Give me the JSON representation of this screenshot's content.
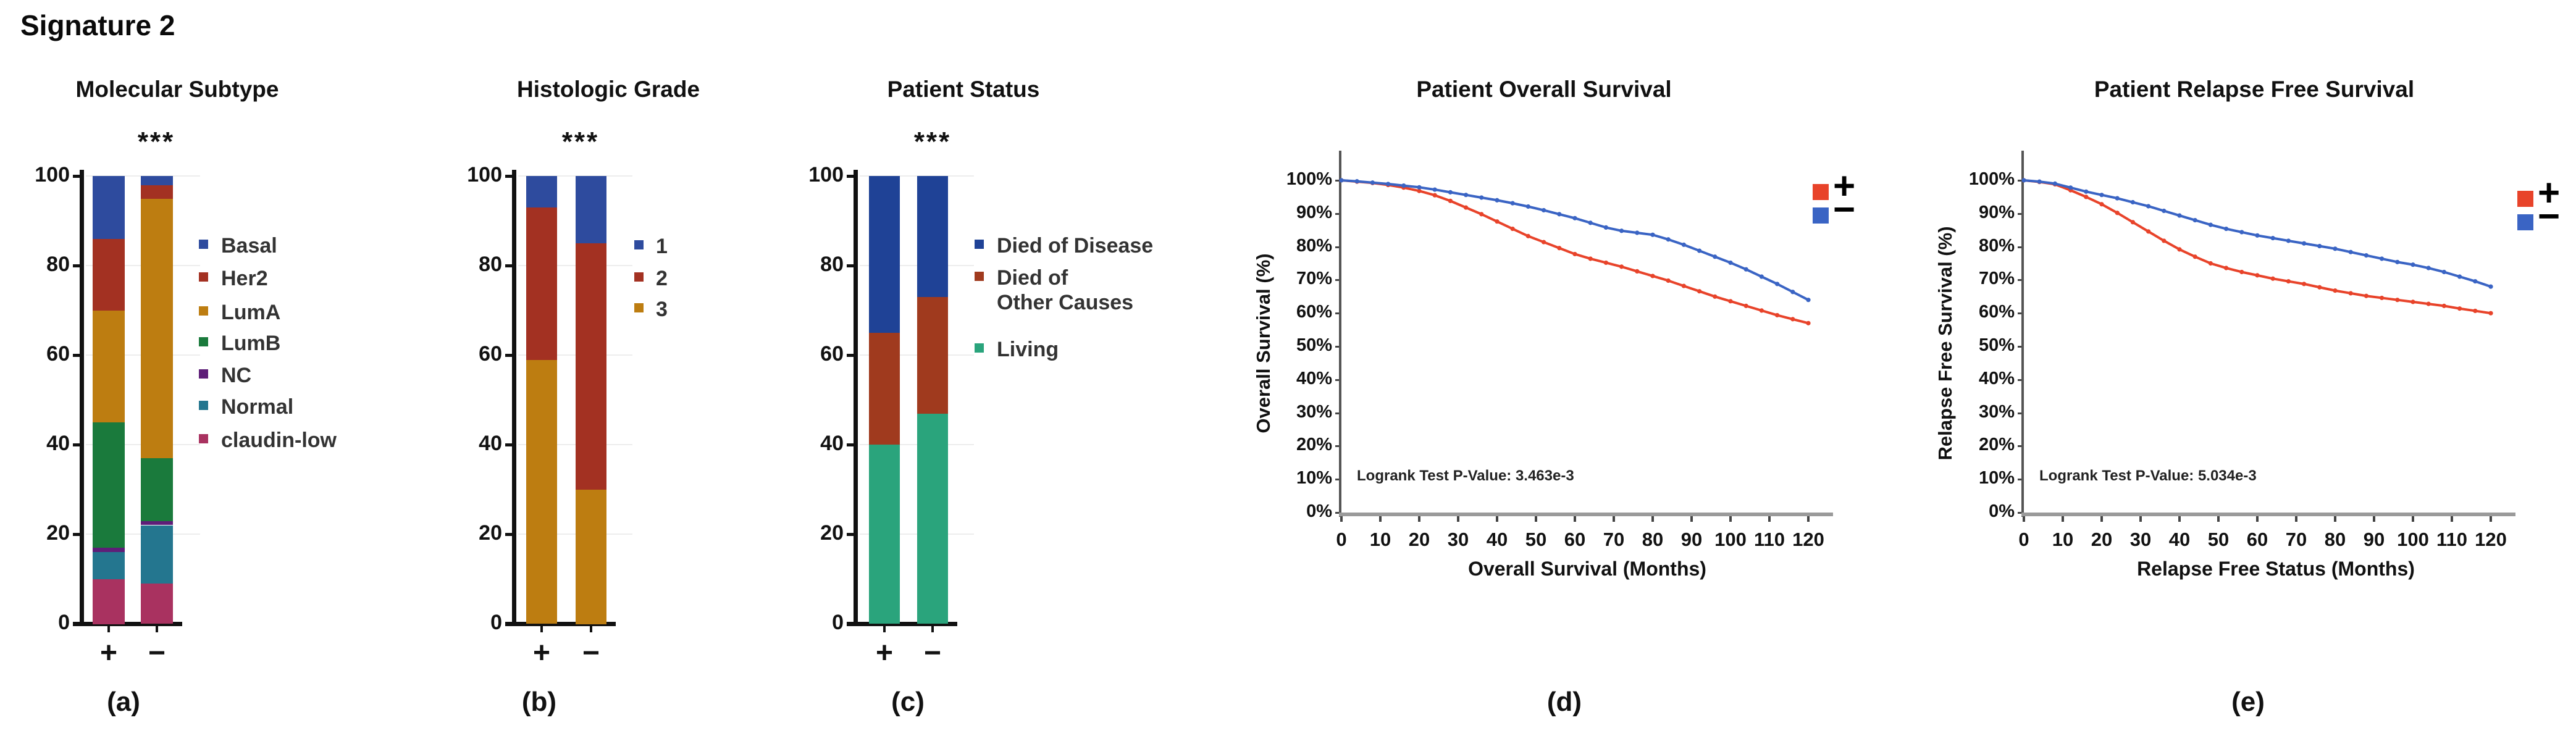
{
  "figure_title": "Signature 2",
  "chart_data": [
    {
      "id": "a",
      "type": "bar",
      "stacked": true,
      "title": "Molecular Subtype",
      "significance": "***",
      "panel_label": "(a)",
      "categories": [
        "+",
        "−"
      ],
      "ylim": [
        0,
        100
      ],
      "yticks": [
        0,
        20,
        40,
        60,
        80,
        100
      ],
      "grid": true,
      "legend_position": "right",
      "series": [
        {
          "name": "claudin-low",
          "color": "#a93260",
          "values": [
            10,
            9
          ]
        },
        {
          "name": "Normal",
          "color": "#24768f",
          "values": [
            6,
            13
          ]
        },
        {
          "name": "NC",
          "color": "#5e1e78",
          "values": [
            1,
            1
          ]
        },
        {
          "name": "LumB",
          "color": "#1a7a3c",
          "values": [
            28,
            14
          ]
        },
        {
          "name": "LumA",
          "color": "#bd7d11",
          "values": [
            25,
            58
          ]
        },
        {
          "name": "Her2",
          "color": "#a33122",
          "values": [
            16,
            3
          ]
        },
        {
          "name": "Basal",
          "color": "#2e4b9e",
          "values": [
            14,
            2
          ]
        }
      ],
      "legend_order": [
        "Basal",
        "Her2",
        "LumA",
        "LumB",
        "NC",
        "Normal",
        "claudin-low"
      ]
    },
    {
      "id": "b",
      "type": "bar",
      "stacked": true,
      "title": "Histologic Grade",
      "significance": "***",
      "panel_label": "(b)",
      "categories": [
        "+",
        "−"
      ],
      "ylim": [
        0,
        100
      ],
      "yticks": [
        0,
        20,
        40,
        60,
        80,
        100
      ],
      "grid": true,
      "legend_position": "right",
      "series": [
        {
          "name": "3",
          "color": "#bd7d11",
          "values": [
            59,
            30
          ]
        },
        {
          "name": "2",
          "color": "#a33122",
          "values": [
            34,
            55
          ]
        },
        {
          "name": "1",
          "color": "#2e4b9e",
          "values": [
            7,
            15
          ]
        }
      ],
      "legend_order": [
        "1",
        "2",
        "3"
      ]
    },
    {
      "id": "c",
      "type": "bar",
      "stacked": true,
      "title": "Patient Status",
      "significance": "***",
      "panel_label": "(c)",
      "categories": [
        "+",
        "−"
      ],
      "ylim": [
        0,
        100
      ],
      "yticks": [
        0,
        20,
        40,
        60,
        80,
        100
      ],
      "grid": true,
      "legend_position": "right",
      "series": [
        {
          "name": "Living",
          "color": "#2aa47c",
          "values": [
            40,
            47
          ]
        },
        {
          "name": "Died of\nOther Causes",
          "color": "#a03a1e",
          "values": [
            25,
            26
          ]
        },
        {
          "name": "Died of Disease",
          "color": "#1f4296",
          "values": [
            35,
            27
          ]
        }
      ],
      "legend_order": [
        "Died of Disease",
        "Died of\nOther Causes",
        "Living"
      ]
    },
    {
      "id": "d",
      "type": "line",
      "title": "Patient Overall Survival",
      "panel_label": "(d)",
      "xlabel": "Overall Survival (Months)",
      "ylabel": "Overall Survival (%)",
      "pvalue": "Logrank Test P-Value: 3.463e-3",
      "xlim": [
        0,
        120
      ],
      "xticks": [
        0,
        10,
        20,
        30,
        40,
        50,
        60,
        70,
        80,
        90,
        100,
        110,
        120
      ],
      "ytick_labels": [
        "0%",
        "10%",
        "20%",
        "30%",
        "40%",
        "50%",
        "60%",
        "70%",
        "80%",
        "90%",
        "100%"
      ],
      "legend_position": "top-right",
      "series": [
        {
          "name": "+",
          "color": "#e8432a",
          "points": [
            [
              0,
              100
            ],
            [
              4,
              99.6
            ],
            [
              8,
              99.2
            ],
            [
              12,
              98.6
            ],
            [
              16,
              97.8
            ],
            [
              20,
              96.8
            ],
            [
              24,
              95.5
            ],
            [
              28,
              93.8
            ],
            [
              32,
              91.8
            ],
            [
              36,
              89.8
            ],
            [
              40,
              87.6
            ],
            [
              44,
              85.4
            ],
            [
              48,
              83.2
            ],
            [
              52,
              81.4
            ],
            [
              56,
              79.6
            ],
            [
              60,
              77.8
            ],
            [
              64,
              76.4
            ],
            [
              68,
              75.2
            ],
            [
              72,
              74
            ],
            [
              76,
              72.6
            ],
            [
              80,
              71.2
            ],
            [
              84,
              69.8
            ],
            [
              88,
              68.2
            ],
            [
              92,
              66.6
            ],
            [
              96,
              65
            ],
            [
              100,
              63.6
            ],
            [
              104,
              62.2
            ],
            [
              108,
              60.8
            ],
            [
              112,
              59.4
            ],
            [
              116,
              58.2
            ],
            [
              120,
              57
            ]
          ]
        },
        {
          "name": "−",
          "color": "#3a64c4",
          "points": [
            [
              0,
              100
            ],
            [
              4,
              99.7
            ],
            [
              8,
              99.3
            ],
            [
              12,
              98.9
            ],
            [
              16,
              98.4
            ],
            [
              20,
              97.9
            ],
            [
              24,
              97.2
            ],
            [
              28,
              96.4
            ],
            [
              32,
              95.6
            ],
            [
              36,
              94.8
            ],
            [
              40,
              94
            ],
            [
              44,
              93.1
            ],
            [
              48,
              92.1
            ],
            [
              52,
              91
            ],
            [
              56,
              89.8
            ],
            [
              60,
              88.6
            ],
            [
              64,
              87.2
            ],
            [
              68,
              85.8
            ],
            [
              72,
              84.8
            ],
            [
              76,
              84.2
            ],
            [
              80,
              83.6
            ],
            [
              84,
              82.2
            ],
            [
              88,
              80.6
            ],
            [
              92,
              78.8
            ],
            [
              96,
              77
            ],
            [
              100,
              75.2
            ],
            [
              104,
              73.2
            ],
            [
              108,
              71
            ],
            [
              112,
              68.8
            ],
            [
              116,
              66.4
            ],
            [
              120,
              64
            ]
          ]
        }
      ]
    },
    {
      "id": "e",
      "type": "line",
      "title": "Patient Relapse Free Survival",
      "panel_label": "(e)",
      "xlabel": "Relapse Free Status (Months)",
      "ylabel": "Relapse Free Survival (%)",
      "pvalue": "Logrank Test P-Value: 5.034e-3",
      "xlim": [
        0,
        120
      ],
      "xticks": [
        0,
        10,
        20,
        30,
        40,
        50,
        60,
        70,
        80,
        90,
        100,
        110,
        120
      ],
      "ytick_labels": [
        "0%",
        "10%",
        "20%",
        "30%",
        "40%",
        "50%",
        "60%",
        "70%",
        "80%",
        "90%",
        "100%"
      ],
      "legend_position": "top-right",
      "series": [
        {
          "name": "+",
          "color": "#e8432a",
          "points": [
            [
              0,
              100
            ],
            [
              4,
              99.5
            ],
            [
              8,
              98.8
            ],
            [
              12,
              97
            ],
            [
              16,
              95
            ],
            [
              20,
              92.8
            ],
            [
              24,
              90.2
            ],
            [
              28,
              87.4
            ],
            [
              32,
              84.6
            ],
            [
              36,
              81.8
            ],
            [
              40,
              79.2
            ],
            [
              44,
              77
            ],
            [
              48,
              75
            ],
            [
              52,
              73.6
            ],
            [
              56,
              72.4
            ],
            [
              60,
              71.4
            ],
            [
              64,
              70.4
            ],
            [
              68,
              69.6
            ],
            [
              72,
              68.8
            ],
            [
              76,
              67.8
            ],
            [
              80,
              66.8
            ],
            [
              84,
              66
            ],
            [
              88,
              65.2
            ],
            [
              92,
              64.6
            ],
            [
              96,
              64
            ],
            [
              100,
              63.4
            ],
            [
              104,
              62.8
            ],
            [
              108,
              62.2
            ],
            [
              112,
              61.4
            ],
            [
              116,
              60.7
            ],
            [
              120,
              60
            ]
          ]
        },
        {
          "name": "−",
          "color": "#3a64c4",
          "points": [
            [
              0,
              100
            ],
            [
              4,
              99.6
            ],
            [
              8,
              99
            ],
            [
              12,
              97.8
            ],
            [
              16,
              96.6
            ],
            [
              20,
              95.6
            ],
            [
              24,
              94.6
            ],
            [
              28,
              93.4
            ],
            [
              32,
              92.2
            ],
            [
              36,
              90.8
            ],
            [
              40,
              89.4
            ],
            [
              44,
              88
            ],
            [
              48,
              86.6
            ],
            [
              52,
              85.4
            ],
            [
              56,
              84.4
            ],
            [
              60,
              83.4
            ],
            [
              64,
              82.6
            ],
            [
              68,
              81.8
            ],
            [
              72,
              81
            ],
            [
              76,
              80.2
            ],
            [
              80,
              79.4
            ],
            [
              84,
              78.4
            ],
            [
              88,
              77.4
            ],
            [
              92,
              76.4
            ],
            [
              96,
              75.4
            ],
            [
              100,
              74.6
            ],
            [
              104,
              73.6
            ],
            [
              108,
              72.4
            ],
            [
              112,
              71
            ],
            [
              116,
              69.6
            ],
            [
              120,
              68
            ]
          ]
        }
      ]
    }
  ]
}
